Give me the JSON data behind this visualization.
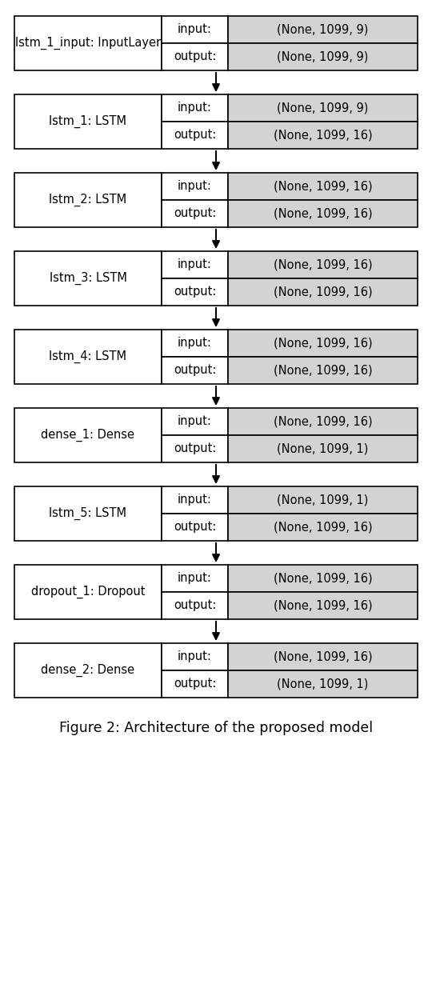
{
  "figure_caption": "Figure 2: Architecture of the proposed model",
  "background_color": "#ffffff",
  "layers": [
    {
      "name": "lstm_1_input: InputLayer",
      "input": "(None, 1099, 9)",
      "output": "(None, 1099, 9)"
    },
    {
      "name": "lstm_1: LSTM",
      "input": "(None, 1099, 9)",
      "output": "(None, 1099, 16)"
    },
    {
      "name": "lstm_2: LSTM",
      "input": "(None, 1099, 16)",
      "output": "(None, 1099, 16)"
    },
    {
      "name": "lstm_3: LSTM",
      "input": "(None, 1099, 16)",
      "output": "(None, 1099, 16)"
    },
    {
      "name": "lstm_4: LSTM",
      "input": "(None, 1099, 16)",
      "output": "(None, 1099, 16)"
    },
    {
      "name": "dense_1: Dense",
      "input": "(None, 1099, 16)",
      "output": "(None, 1099, 1)"
    },
    {
      "name": "lstm_5: LSTM",
      "input": "(None, 1099, 1)",
      "output": "(None, 1099, 16)"
    },
    {
      "name": "dropout_1: Dropout",
      "input": "(None, 1099, 16)",
      "output": "(None, 1099, 16)"
    },
    {
      "name": "dense_2: Dense",
      "input": "(None, 1099, 16)",
      "output": "(None, 1099, 1)"
    }
  ],
  "border_color": "#000000",
  "name_bg": "#ffffff",
  "label_bg": "#ffffff",
  "value_bg": "#d3d3d3",
  "text_color": "#000000",
  "arrow_color": "#000000",
  "font_size": 10.5,
  "caption_font_size": 12.5
}
